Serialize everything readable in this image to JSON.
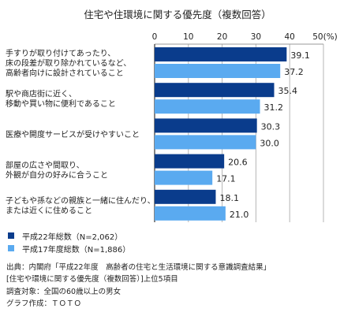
{
  "chart_data": {
    "type": "bar",
    "orientation": "horizontal",
    "title": "住宅や住環境に関する優先度（複数回答）",
    "x_unit_label": "50(%)",
    "xlim": [
      0,
      50
    ],
    "x_ticks": [
      "0",
      "10",
      "20",
      "30",
      "40"
    ],
    "categories": [
      [
        "手すりが取り付けてあったり、",
        "床の段差が取り除かれているなど、",
        "高齢者向けに設計されていること"
      ],
      [
        "駅や商店街に近く、",
        "移動や買い物に便利であること"
      ],
      [
        "医療や開度サービスが受けやすいこと"
      ],
      [
        "部屋の広さや間取り、",
        "外観が自分の好みに合うこと"
      ],
      [
        "子どもや孫などの親族と一緒に住んだり、",
        "または近くに住めること"
      ]
    ],
    "series": [
      {
        "name": "平成22年総数（N=2,062）",
        "color": "#0a3c8c",
        "values": [
          39.1,
          35.4,
          30.3,
          20.6,
          18.1
        ]
      },
      {
        "name": "平成17年度総数（N=1,886）",
        "color": "#5aaaf0",
        "values": [
          37.2,
          31.2,
          30.0,
          17.1,
          21.0
        ]
      }
    ],
    "grid": true,
    "legend_position": "bottom-left"
  },
  "notes": [
    "出典：内閣府「平成22年度　高齢者の住宅と生活環境に関する意識調査結果」",
    "[住宅や環境に関する優先度（複数回答）]上位5項目",
    "調査対象：全国の60歳以上の男女",
    "グラフ作成：ＴＯＴＯ"
  ]
}
